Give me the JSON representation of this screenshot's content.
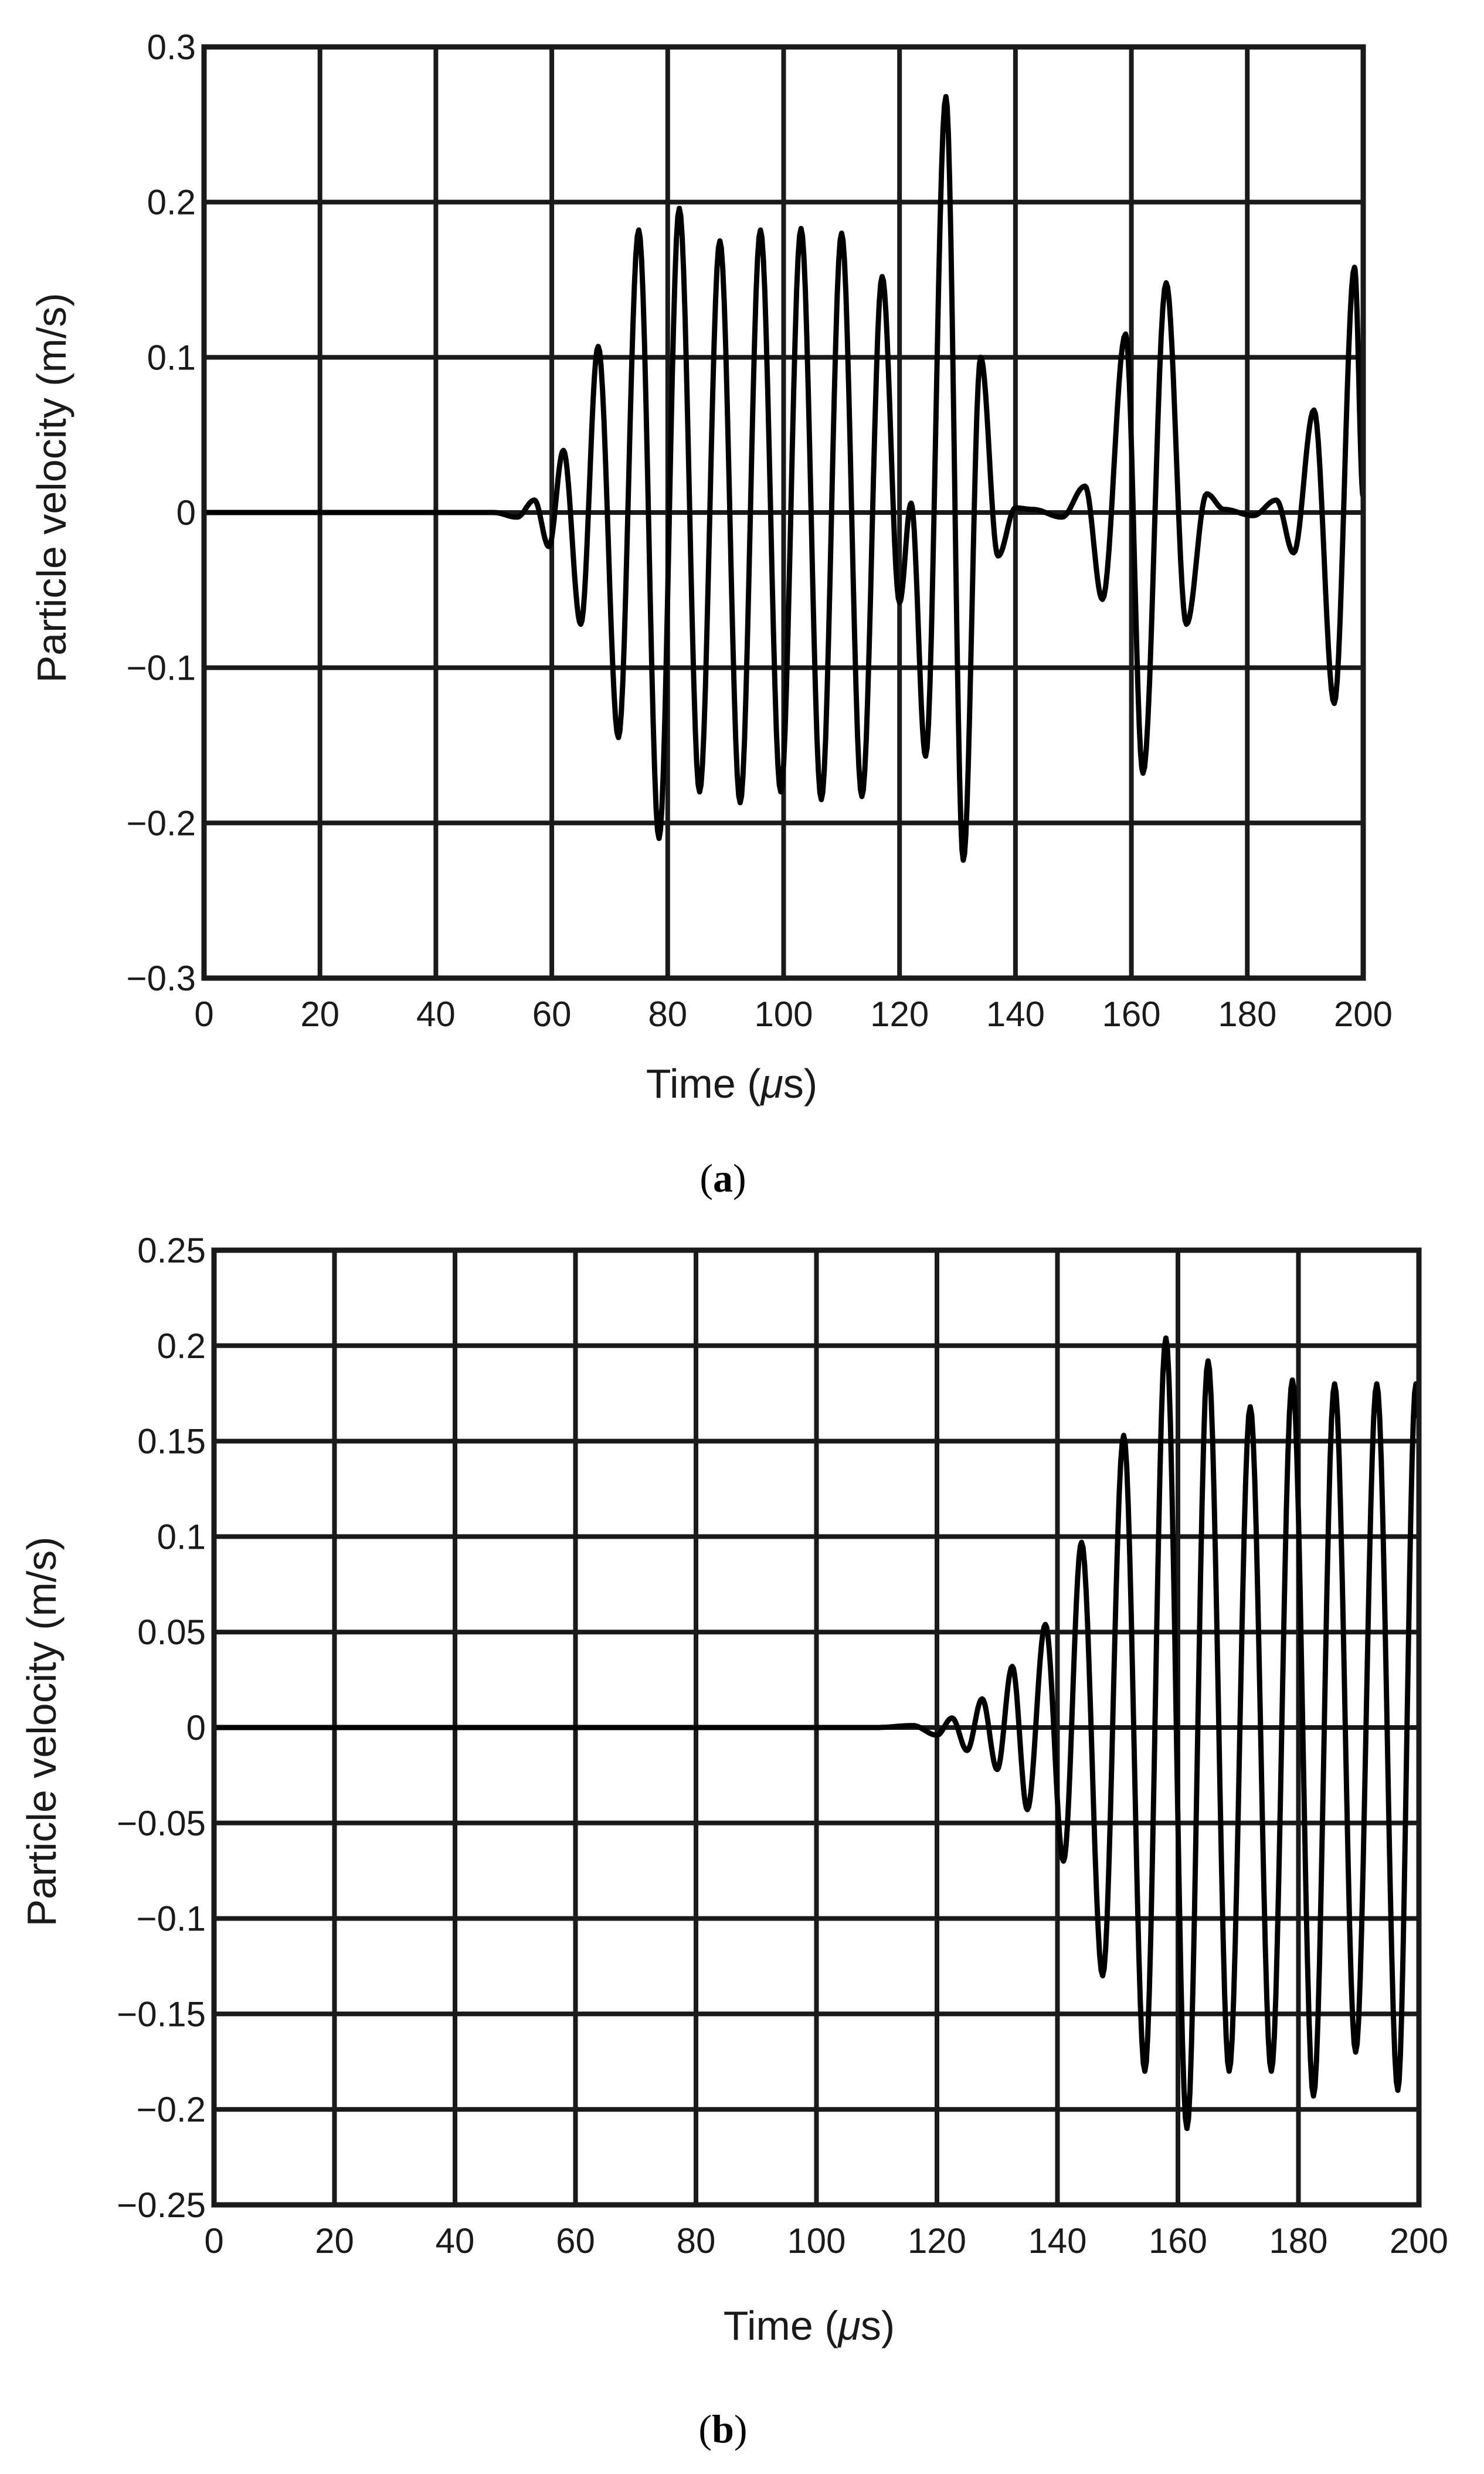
{
  "chart_data": [
    {
      "type": "line",
      "panel_label": "(a)",
      "panel_letter": "a",
      "title": "",
      "xlabel": "Time (μs)",
      "xlabel_prefix": "Time (",
      "xlabel_unit": "μ",
      "xlabel_suffix": "s)",
      "ylabel": "Particle velocity (m/s)",
      "xlim": [
        0,
        200
      ],
      "ylim": [
        -0.3,
        0.3
      ],
      "grid": true,
      "x_ticks": [
        0,
        20,
        40,
        60,
        80,
        100,
        120,
        140,
        160,
        180,
        200
      ],
      "x_tick_labels": [
        "0",
        "20",
        "40",
        "60",
        "80",
        "100",
        "120",
        "140",
        "160",
        "180",
        "200"
      ],
      "y_ticks": [
        -0.3,
        -0.2,
        -0.1,
        0,
        0.1,
        0.2,
        0.3
      ],
      "y_tick_labels": [
        "−0.3",
        "−0.2",
        "−0.1",
        "0",
        "0.1",
        "0.2",
        "0.3"
      ],
      "series": [
        {
          "name": "Particle velocity",
          "color": "#000000",
          "extrema": [
            [
              0,
              0
            ],
            [
              50,
              0
            ],
            [
              54,
              -0.003
            ],
            [
              57,
              0.008
            ],
            [
              59.5,
              -0.022
            ],
            [
              62,
              0.04
            ],
            [
              65,
              -0.072
            ],
            [
              68,
              0.107
            ],
            [
              71.5,
              -0.145
            ],
            [
              75,
              0.182
            ],
            [
              78.5,
              -0.21
            ],
            [
              82,
              0.196
            ],
            [
              85.5,
              -0.18
            ],
            [
              89,
              0.175
            ],
            [
              92.5,
              -0.187
            ],
            [
              96,
              0.182
            ],
            [
              99.5,
              -0.18
            ],
            [
              103,
              0.183
            ],
            [
              106.5,
              -0.185
            ],
            [
              110,
              0.18
            ],
            [
              113.5,
              -0.183
            ],
            [
              117,
              0.152
            ],
            [
              120,
              -0.058
            ],
            [
              122,
              0.006
            ],
            [
              124.5,
              -0.157
            ],
            [
              128,
              0.268
            ],
            [
              131,
              -0.224
            ],
            [
              134,
              0.1
            ],
            [
              137,
              -0.028
            ],
            [
              140,
              0.003
            ],
            [
              143,
              0.002
            ],
            [
              148,
              -0.003
            ],
            [
              152,
              0.017
            ],
            [
              155,
              -0.056
            ],
            [
              159,
              0.115
            ],
            [
              162,
              -0.168
            ],
            [
              166,
              0.148
            ],
            [
              169.5,
              -0.072
            ],
            [
              173,
              0.012
            ],
            [
              176,
              0.002
            ],
            [
              181,
              -0.002
            ],
            [
              185,
              0.008
            ],
            [
              188,
              -0.026
            ],
            [
              191.5,
              0.066
            ],
            [
              195,
              -0.123
            ],
            [
              198.5,
              0.158
            ],
            [
              200,
              0.01
            ]
          ]
        }
      ]
    },
    {
      "type": "line",
      "panel_label": "(b)",
      "panel_letter": "b",
      "title": "",
      "xlabel": "Time (μs)",
      "xlabel_prefix": "Time (",
      "xlabel_unit": "μ",
      "xlabel_suffix": "s)",
      "ylabel": "Particle velocity (m/s)",
      "xlim": [
        0,
        200
      ],
      "ylim": [
        -0.25,
        0.25
      ],
      "grid": true,
      "x_ticks": [
        0,
        20,
        40,
        60,
        80,
        100,
        120,
        140,
        160,
        180,
        200
      ],
      "x_tick_labels": [
        "0",
        "20",
        "40",
        "60",
        "80",
        "100",
        "120",
        "140",
        "160",
        "180",
        "200"
      ],
      "y_ticks": [
        -0.25,
        -0.2,
        -0.15,
        -0.1,
        -0.05,
        0,
        0.05,
        0.1,
        0.15,
        0.2,
        0.25
      ],
      "y_tick_labels": [
        "−0.25",
        "−0.2",
        "−0.15",
        "−0.1",
        "−0.05",
        "0",
        "0.05",
        "0.1",
        "0.15",
        "0.2",
        "0.25"
      ],
      "series": [
        {
          "name": "Particle velocity",
          "color": "#000000",
          "extrema": [
            [
              0,
              0
            ],
            [
              110,
              0
            ],
            [
              116,
              0.001
            ],
            [
              120,
              -0.004
            ],
            [
              122.5,
              0.005
            ],
            [
              125,
              -0.012
            ],
            [
              127.5,
              0.015
            ],
            [
              130,
              -0.022
            ],
            [
              132.5,
              0.032
            ],
            [
              135,
              -0.043
            ],
            [
              138,
              0.054
            ],
            [
              141,
              -0.07
            ],
            [
              144,
              0.097
            ],
            [
              147.5,
              -0.13
            ],
            [
              151,
              0.153
            ],
            [
              154.5,
              -0.18
            ],
            [
              158,
              0.204
            ],
            [
              161.5,
              -0.21
            ],
            [
              165,
              0.192
            ],
            [
              168.5,
              -0.18
            ],
            [
              172,
              0.168
            ],
            [
              175.5,
              -0.18
            ],
            [
              179,
              0.182
            ],
            [
              182.5,
              -0.193
            ],
            [
              186,
              0.18
            ],
            [
              189.5,
              -0.17
            ],
            [
              193,
              0.18
            ],
            [
              196.5,
              -0.19
            ],
            [
              199.5,
              0.18
            ],
            [
              200,
              0.162
            ]
          ]
        }
      ]
    }
  ]
}
